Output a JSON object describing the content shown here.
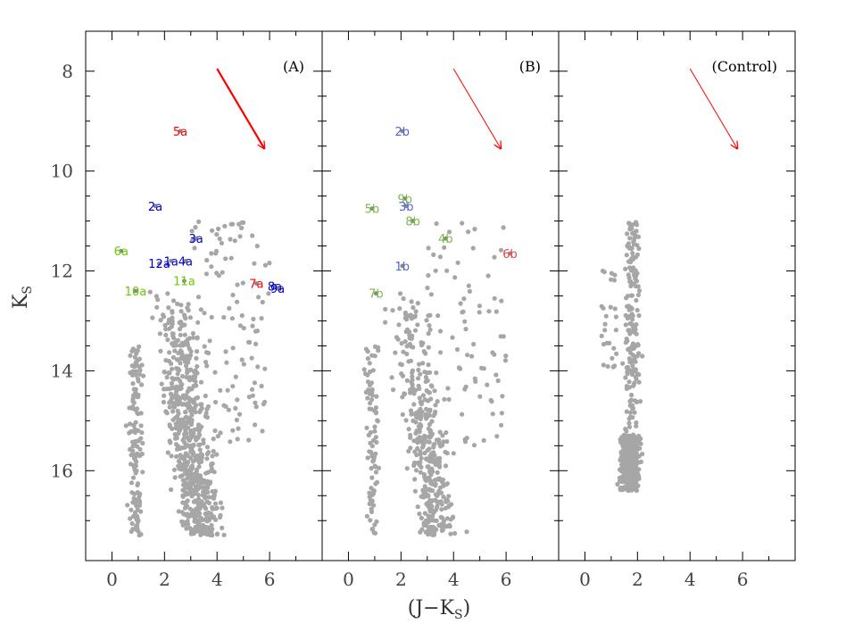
{
  "chart_data": {
    "type": "scatter",
    "xlabel": "(J−K",
    "xlabel_sub": "S",
    "xlabel_close": ")",
    "ylabel": "K",
    "ylabel_sub": "S",
    "xlim": [
      -1,
      8
    ],
    "ylim": [
      17.8,
      7.2
    ],
    "x_ticks": [
      0,
      2,
      4,
      6
    ],
    "y_ticks": [
      8,
      10,
      12,
      14,
      16
    ],
    "point_color": "#a6a6a6",
    "reddening_vector": {
      "x0": 4.0,
      "y0": 7.95,
      "x1": 5.8,
      "y1": 9.55
    },
    "panels": [
      {
        "label": "(A)",
        "arrow_color": "#ff0000",
        "arrow_width": "bold",
        "sources": [
          {
            "label": "5a",
            "x": 2.6,
            "y": 9.2,
            "color": "#ff0000"
          },
          {
            "label": "2a",
            "x": 1.65,
            "y": 10.7,
            "color": "#0000cc"
          },
          {
            "label": "3a",
            "x": 3.2,
            "y": 11.35,
            "color": "#0000cc"
          },
          {
            "label": "6a",
            "x": 0.35,
            "y": 11.6,
            "color": "#66cc00"
          },
          {
            "label": "12a",
            "x": 1.8,
            "y": 11.85,
            "color": "#0000cc"
          },
          {
            "label": "1a",
            "x": 2.25,
            "y": 11.8,
            "color": "#0000cc"
          },
          {
            "label": "4a",
            "x": 2.8,
            "y": 11.8,
            "color": "#0000cc"
          },
          {
            "label": "10a",
            "x": 0.9,
            "y": 12.4,
            "color": "#66cc00"
          },
          {
            "label": "11a",
            "x": 2.75,
            "y": 12.2,
            "color": "#66cc00"
          },
          {
            "label": "7a",
            "x": 5.5,
            "y": 12.25,
            "color": "#ff0000"
          },
          {
            "label": "8a",
            "x": 6.2,
            "y": 12.3,
            "color": "#0000cc"
          },
          {
            "label": "9a",
            "x": 6.3,
            "y": 12.35,
            "color": "#0000cc"
          }
        ]
      },
      {
        "label": "(B)",
        "arrow_color": "#ff0000",
        "arrow_width": "thin",
        "sources": [
          {
            "label": "2b",
            "x": 2.05,
            "y": 9.2,
            "color": "#5566cc"
          },
          {
            "label": "9b",
            "x": 2.15,
            "y": 10.55,
            "color": "#77bb44"
          },
          {
            "label": "3b",
            "x": 2.2,
            "y": 10.7,
            "color": "#5566cc"
          },
          {
            "label": "5b",
            "x": 0.9,
            "y": 10.75,
            "color": "#77bb44"
          },
          {
            "label": "8b",
            "x": 2.45,
            "y": 11.0,
            "color": "#77bb44"
          },
          {
            "label": "4b",
            "x": 3.7,
            "y": 11.35,
            "color": "#77bb44"
          },
          {
            "label": "6b",
            "x": 6.15,
            "y": 11.65,
            "color": "#ee4444"
          },
          {
            "label": "1b",
            "x": 2.05,
            "y": 11.9,
            "color": "#5566cc"
          },
          {
            "label": "7b",
            "x": 1.05,
            "y": 12.45,
            "color": "#77bb44"
          }
        ]
      },
      {
        "label": "(Control)",
        "arrow_color": "#ff0000",
        "arrow_width": "thin",
        "sources": []
      }
    ]
  }
}
